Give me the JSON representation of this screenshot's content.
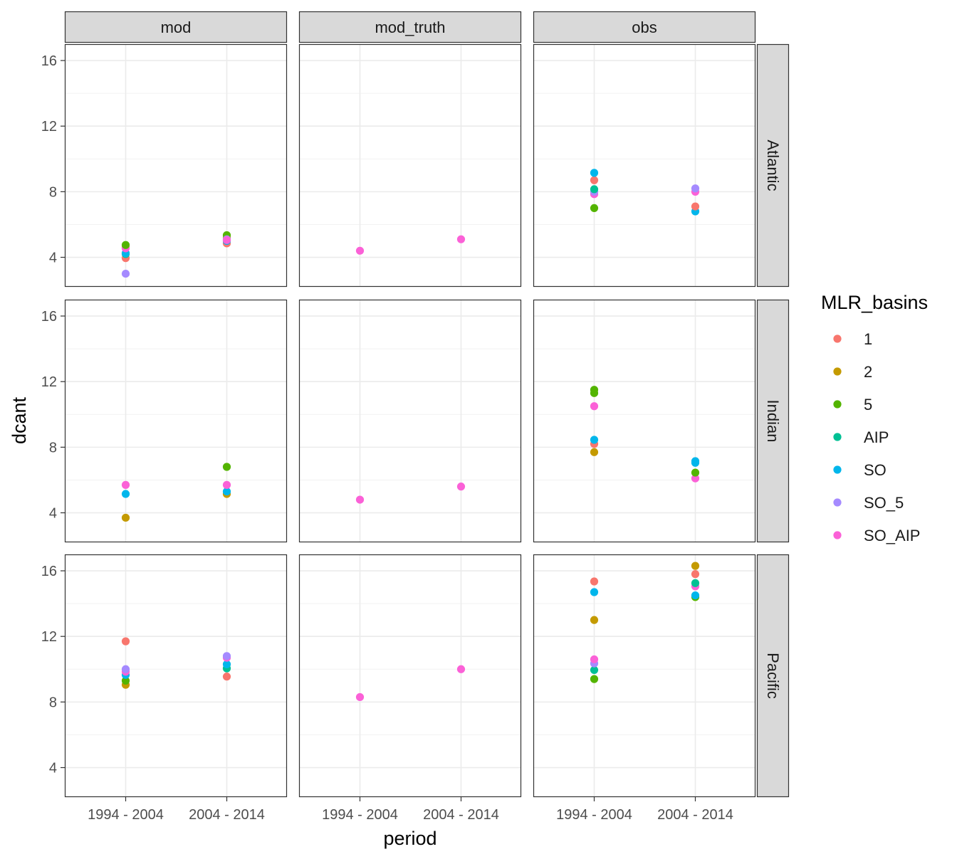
{
  "chart_data": {
    "type": "scatter",
    "xlabel": "period",
    "ylabel": "dcant",
    "x_categories": [
      "1994 - 2004",
      "2004 - 2014"
    ],
    "ylim": [
      2.2,
      17
    ],
    "y_ticks": [
      4,
      8,
      12,
      16
    ],
    "grid": true,
    "facet_columns": [
      "mod",
      "mod_truth",
      "obs"
    ],
    "facet_rows": [
      "Atlantic",
      "Indian",
      "Pacific"
    ],
    "legend": {
      "title": "MLR_basins",
      "position": "right",
      "entries": [
        {
          "label": "1",
          "color": "#F8766D"
        },
        {
          "label": "2",
          "color": "#C49A00"
        },
        {
          "label": "5",
          "color": "#53B400"
        },
        {
          "label": "AIP",
          "color": "#00C094"
        },
        {
          "label": "SO",
          "color": "#00B6EB"
        },
        {
          "label": "SO_5",
          "color": "#A58AFF"
        },
        {
          "label": "SO_AIP",
          "color": "#FB61D7"
        }
      ]
    },
    "panels": [
      {
        "col": "mod",
        "row": "Atlantic",
        "points": [
          {
            "series": "SO_5",
            "x": "1994 - 2004",
            "y": 3.0
          },
          {
            "series": "1",
            "x": "1994 - 2004",
            "y": 3.95
          },
          {
            "series": "AIP",
            "x": "1994 - 2004",
            "y": 4.2
          },
          {
            "series": "SO",
            "x": "1994 - 2004",
            "y": 4.25
          },
          {
            "series": "2",
            "x": "1994 - 2004",
            "y": 4.6
          },
          {
            "series": "SO_AIP",
            "x": "1994 - 2004",
            "y": 4.55
          },
          {
            "series": "5",
            "x": "1994 - 2004",
            "y": 4.75
          },
          {
            "series": "1",
            "x": "2004 - 2014",
            "y": 4.85
          },
          {
            "series": "SO",
            "x": "2004 - 2014",
            "y": 5.0
          },
          {
            "series": "2",
            "x": "2004 - 2014",
            "y": 5.2
          },
          {
            "series": "5",
            "x": "2004 - 2014",
            "y": 5.35
          },
          {
            "series": "SO_5",
            "x": "2004 - 2014",
            "y": 5.1
          },
          {
            "series": "SO_AIP",
            "x": "2004 - 2014",
            "y": 5.05
          }
        ]
      },
      {
        "col": "mod_truth",
        "row": "Atlantic",
        "points": [
          {
            "series": "SO_AIP",
            "x": "1994 - 2004",
            "y": 4.4
          },
          {
            "series": "SO_AIP",
            "x": "2004 - 2014",
            "y": 5.1
          }
        ]
      },
      {
        "col": "obs",
        "row": "Atlantic",
        "points": [
          {
            "series": "5",
            "x": "1994 - 2004",
            "y": 7.0
          },
          {
            "series": "SO_AIP",
            "x": "1994 - 2004",
            "y": 7.85
          },
          {
            "series": "SO_5",
            "x": "1994 - 2004",
            "y": 8.0
          },
          {
            "series": "AIP",
            "x": "1994 - 2004",
            "y": 8.15
          },
          {
            "series": "1",
            "x": "1994 - 2004",
            "y": 8.7
          },
          {
            "series": "SO",
            "x": "1994 - 2004",
            "y": 9.15
          },
          {
            "series": "SO",
            "x": "2004 - 2014",
            "y": 6.8
          },
          {
            "series": "1",
            "x": "2004 - 2014",
            "y": 7.1
          },
          {
            "series": "SO_AIP",
            "x": "2004 - 2014",
            "y": 8.0
          },
          {
            "series": "SO_5",
            "x": "2004 - 2014",
            "y": 8.2
          }
        ]
      },
      {
        "col": "mod",
        "row": "Indian",
        "points": [
          {
            "series": "2",
            "x": "1994 - 2004",
            "y": 3.7
          },
          {
            "series": "SO",
            "x": "1994 - 2004",
            "y": 5.15
          },
          {
            "series": "SO_AIP",
            "x": "1994 - 2004",
            "y": 5.7
          },
          {
            "series": "2",
            "x": "2004 - 2014",
            "y": 5.15
          },
          {
            "series": "SO",
            "x": "2004 - 2014",
            "y": 5.3
          },
          {
            "series": "SO_AIP",
            "x": "2004 - 2014",
            "y": 5.7
          },
          {
            "series": "5",
            "x": "2004 - 2014",
            "y": 6.8
          }
        ]
      },
      {
        "col": "mod_truth",
        "row": "Indian",
        "points": [
          {
            "series": "SO_AIP",
            "x": "1994 - 2004",
            "y": 4.8
          },
          {
            "series": "SO_AIP",
            "x": "2004 - 2014",
            "y": 5.6
          }
        ]
      },
      {
        "col": "obs",
        "row": "Indian",
        "points": [
          {
            "series": "2",
            "x": "1994 - 2004",
            "y": 7.7
          },
          {
            "series": "1",
            "x": "1994 - 2004",
            "y": 8.2
          },
          {
            "series": "SO",
            "x": "1994 - 2004",
            "y": 8.45
          },
          {
            "series": "SO_AIP",
            "x": "1994 - 2004",
            "y": 10.5
          },
          {
            "series": "5",
            "x": "1994 - 2004",
            "y": 11.3
          },
          {
            "series": "5",
            "x": "1994 - 2004",
            "y": 11.5
          },
          {
            "series": "SO_AIP",
            "x": "2004 - 2014",
            "y": 6.1
          },
          {
            "series": "5",
            "x": "2004 - 2014",
            "y": 6.45
          },
          {
            "series": "SO",
            "x": "2004 - 2014",
            "y": 7.05
          },
          {
            "series": "SO",
            "x": "2004 - 2014",
            "y": 7.15
          }
        ]
      },
      {
        "col": "mod",
        "row": "Pacific",
        "points": [
          {
            "series": "2",
            "x": "1994 - 2004",
            "y": 9.05
          },
          {
            "series": "5",
            "x": "1994 - 2004",
            "y": 9.3
          },
          {
            "series": "SO",
            "x": "1994 - 2004",
            "y": 9.65
          },
          {
            "series": "SO_AIP",
            "x": "1994 - 2004",
            "y": 9.85
          },
          {
            "series": "SO_5",
            "x": "1994 - 2004",
            "y": 10.0
          },
          {
            "series": "1",
            "x": "1994 - 2004",
            "y": 11.7
          },
          {
            "series": "1",
            "x": "2004 - 2014",
            "y": 9.55
          },
          {
            "series": "AIP",
            "x": "2004 - 2014",
            "y": 10.05
          },
          {
            "series": "SO",
            "x": "2004 - 2014",
            "y": 10.3
          },
          {
            "series": "SO_AIP",
            "x": "2004 - 2014",
            "y": 10.7
          },
          {
            "series": "SO_5",
            "x": "2004 - 2014",
            "y": 10.8
          }
        ]
      },
      {
        "col": "mod_truth",
        "row": "Pacific",
        "points": [
          {
            "series": "SO_AIP",
            "x": "1994 - 2004",
            "y": 8.3
          },
          {
            "series": "SO_AIP",
            "x": "2004 - 2014",
            "y": 10.0
          }
        ]
      },
      {
        "col": "obs",
        "row": "Pacific",
        "points": [
          {
            "series": "5",
            "x": "1994 - 2004",
            "y": 9.4
          },
          {
            "series": "AIP",
            "x": "1994 - 2004",
            "y": 9.95
          },
          {
            "series": "SO_5",
            "x": "1994 - 2004",
            "y": 10.35
          },
          {
            "series": "SO_AIP",
            "x": "1994 - 2004",
            "y": 10.6
          },
          {
            "series": "2",
            "x": "1994 - 2004",
            "y": 13.0
          },
          {
            "series": "SO",
            "x": "1994 - 2004",
            "y": 14.7
          },
          {
            "series": "1",
            "x": "1994 - 2004",
            "y": 15.35
          },
          {
            "series": "5",
            "x": "2004 - 2014",
            "y": 14.4
          },
          {
            "series": "SO",
            "x": "2004 - 2014",
            "y": 14.5
          },
          {
            "series": "SO_AIP",
            "x": "2004 - 2014",
            "y": 15.05
          },
          {
            "series": "AIP",
            "x": "2004 - 2014",
            "y": 15.25
          },
          {
            "series": "1",
            "x": "2004 - 2014",
            "y": 15.8
          },
          {
            "series": "2",
            "x": "2004 - 2014",
            "y": 16.3
          }
        ]
      }
    ]
  }
}
